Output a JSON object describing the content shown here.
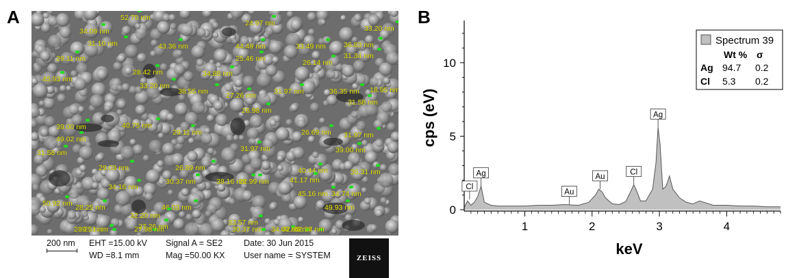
{
  "panels": {
    "a": "A",
    "b": "B"
  },
  "sem": {
    "scale_bar_label": "200 nm",
    "info": {
      "eht": "EHT =15.00 kV",
      "wd": "WD =8.1 mm",
      "signal": "Signal A = SE2",
      "mag": "Mag =50.00 KX",
      "date": "Date: 30 Jun 2015",
      "user": "User name = SYSTEM"
    },
    "logo": "ZEISS",
    "measurements": [
      "52.70 nm",
      "34.09 nm",
      "24.97 nm",
      "33.20 nm",
      "31.10 nm",
      "43.36 nm",
      "44.49 nm",
      "33.49 nm",
      "36.83 nm",
      "29.11 nm",
      "25.46 nm",
      "26.14 nm",
      "31.34 nm",
      "45.93 nm",
      "28.42 nm",
      "34.88 nm",
      "33.20 nm",
      "38.55 nm",
      "27.26 nm",
      "31.97 nm",
      "36.35 nm",
      "18.95 nm",
      "31.58 nm",
      "26.98 nm",
      "39.00 nm",
      "40.75 nm",
      "29.11 nm",
      "49.02 nm",
      "26.69 nm",
      "31.97 nm",
      "31.97 nm",
      "39.00 nm",
      "31.58 nm",
      "29.03 nm",
      "26.89 nm",
      "40.44 nm",
      "35.31 nm",
      "30.37 nm",
      "38.16 nm",
      "22.99 nm",
      "41.17 nm",
      "34.16 nm",
      "45.16 nm",
      "34.74 nm",
      "50.92 nm",
      "28.25 nm",
      "46.03 nm",
      "32.20 nm",
      "49.93 nm",
      "27.26 nm",
      "33.57 nm",
      "28.25 nm",
      "34.09 nm",
      "52.27 nm",
      "30.37 nm",
      "39.51 nm",
      "27.98 nm",
      "42.95 nm"
    ]
  },
  "chart_data": {
    "type": "area",
    "xlabel": "keV",
    "ylabel": "cps (eV)",
    "xlim": [
      0.1,
      4.8
    ],
    "ylim": [
      0,
      12.5
    ],
    "xticks": [
      1,
      2,
      3,
      4
    ],
    "yticks": [
      0,
      5,
      10
    ],
    "fill_color": "#c0c0c0",
    "line_color": "#555555",
    "x": [
      0.1,
      0.15,
      0.2,
      0.25,
      0.3,
      0.35,
      0.4,
      0.5,
      0.6,
      0.8,
      1.0,
      1.2,
      1.4,
      1.6,
      1.7,
      1.8,
      1.95,
      2.05,
      2.1,
      2.15,
      2.2,
      2.3,
      2.4,
      2.5,
      2.58,
      2.62,
      2.66,
      2.72,
      2.8,
      2.9,
      2.95,
      2.98,
      3.01,
      3.05,
      3.1,
      3.15,
      3.2,
      3.3,
      3.4,
      3.5,
      3.6,
      3.8,
      4.0,
      4.2,
      4.4,
      4.6,
      4.8
    ],
    "y": [
      0.15,
      0.6,
      0.3,
      0.5,
      0.9,
      1.6,
      0.5,
      0.3,
      0.25,
      0.25,
      0.25,
      0.3,
      0.3,
      0.35,
      0.32,
      0.3,
      0.5,
      1.0,
      1.4,
      1.2,
      0.8,
      0.4,
      0.35,
      0.55,
      1.3,
      1.7,
      1.3,
      0.6,
      0.6,
      1.4,
      3.2,
      5.6,
      4.5,
      1.4,
      1.6,
      2.3,
      1.4,
      0.8,
      0.5,
      0.4,
      0.6,
      0.3,
      0.3,
      0.25,
      0.25,
      0.2,
      0.2
    ],
    "peak_labels": [
      {
        "label": "Cl",
        "x": 0.18,
        "y": 0.7
      },
      {
        "label": "Ag",
        "x": 0.35,
        "y": 1.6
      },
      {
        "label": "Au",
        "x": 1.66,
        "y": 0.35
      },
      {
        "label": "Au",
        "x": 2.12,
        "y": 1.4
      },
      {
        "label": "Cl",
        "x": 2.62,
        "y": 1.7
      },
      {
        "label": "Ag",
        "x": 2.98,
        "y": 5.6
      }
    ],
    "legend": {
      "title": "Spectrum 39",
      "headers": [
        "Wt %",
        "σ"
      ],
      "rows": [
        {
          "element": "Ag",
          "wt": "94.7",
          "sigma": "0.2"
        },
        {
          "element": "Cl",
          "wt": "5.3",
          "sigma": "0.2"
        }
      ]
    }
  }
}
